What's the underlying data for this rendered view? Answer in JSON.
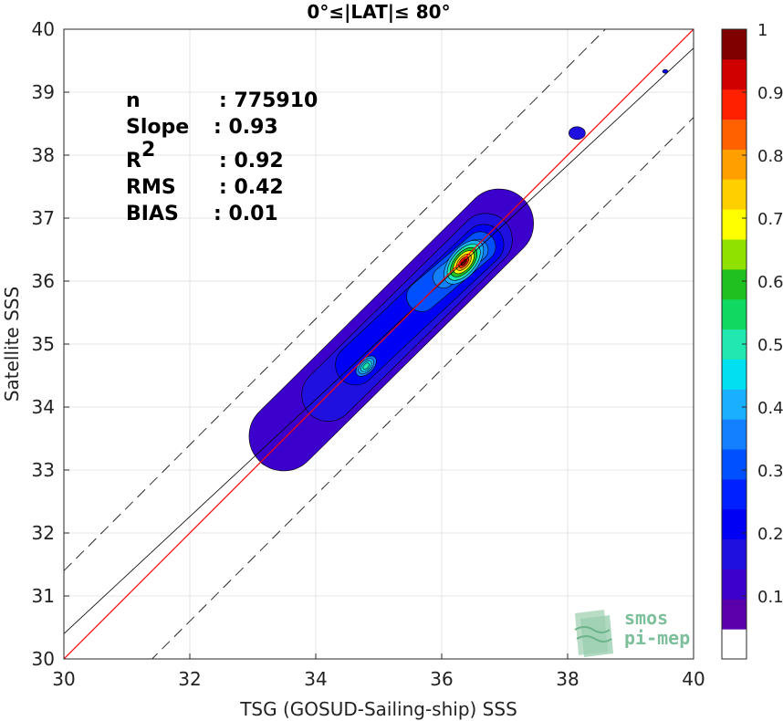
{
  "chart_data": {
    "type": "heatmap",
    "title": "0°≤|LAT|≤ 80°",
    "xlabel": "TSG (GOSUD-Sailing-ship) SSS",
    "ylabel": "Satellite SSS",
    "xlim": [
      30,
      40
    ],
    "ylim": [
      30,
      40
    ],
    "xticks": [
      "30",
      "32",
      "34",
      "36",
      "38",
      "40"
    ],
    "yticks": [
      "30",
      "31",
      "32",
      "33",
      "34",
      "35",
      "36",
      "37",
      "38",
      "39",
      "40"
    ],
    "grid": true,
    "stats": [
      {
        "label": "n",
        "value": ": 775910"
      },
      {
        "label": "Slope",
        "value": ": 0.93"
      },
      {
        "label": "R",
        "sup": "2",
        "value": ": 0.92"
      },
      {
        "label": "RMS",
        "value": ": 0.42"
      },
      {
        "label": "BIAS",
        "value": ": 0.01"
      }
    ],
    "reference_lines": {
      "identity": {
        "slope": 1,
        "intercept": 0,
        "color": "#ff0000"
      },
      "fit": {
        "slope": 0.93,
        "intercept": 2.5,
        "color": "#000000"
      },
      "bounds": {
        "offset": 1.4,
        "style": "dashed",
        "color": "#000000"
      }
    },
    "density": {
      "ridge": [
        [
          33.0,
          33.2
        ],
        [
          33.4,
          33.6
        ],
        [
          33.8,
          33.95
        ],
        [
          34.3,
          34.35
        ],
        [
          34.8,
          34.75
        ],
        [
          35.3,
          35.35
        ],
        [
          35.8,
          35.9
        ],
        [
          36.3,
          36.3
        ],
        [
          36.7,
          36.7
        ],
        [
          37.2,
          37.2
        ]
      ],
      "peaks": [
        {
          "x": 36.35,
          "y": 36.3,
          "level": 0.98
        },
        {
          "x": 34.8,
          "y": 34.65,
          "level": 0.5
        }
      ],
      "isolated": [
        {
          "x": 38.15,
          "y": 38.35,
          "level": 0.15
        },
        {
          "x": 39.55,
          "y": 39.33,
          "level": 0.18
        }
      ],
      "contour_levels": [
        0.05,
        0.1,
        0.15,
        0.2,
        0.25,
        0.3,
        0.35,
        0.4,
        0.45,
        0.5,
        0.55,
        0.6,
        0.65,
        0.7,
        0.75,
        0.8,
        0.85,
        0.9,
        0.95,
        1
      ]
    },
    "colorbar": {
      "ticks": [
        "0.1",
        "0.2",
        "0.3",
        "0.4",
        "0.5",
        "0.6",
        "0.7",
        "0.8",
        "0.9",
        "1"
      ],
      "range": [
        0,
        1
      ],
      "colors": [
        "#ffffff",
        "#5a00aa",
        "#3c00cc",
        "#2010e0",
        "#0000f5",
        "#0020ff",
        "#0050ff",
        "#1280ff",
        "#1ab0ff",
        "#00e0f0",
        "#20e8b0",
        "#10d860",
        "#20c020",
        "#90e000",
        "#ffff00",
        "#ffd000",
        "#ffa000",
        "#ff6000",
        "#ff2000",
        "#d00000",
        "#800000"
      ]
    }
  },
  "watermark": {
    "line1": "smos",
    "line2": "pi-mep",
    "color": "#7dbf9b"
  }
}
